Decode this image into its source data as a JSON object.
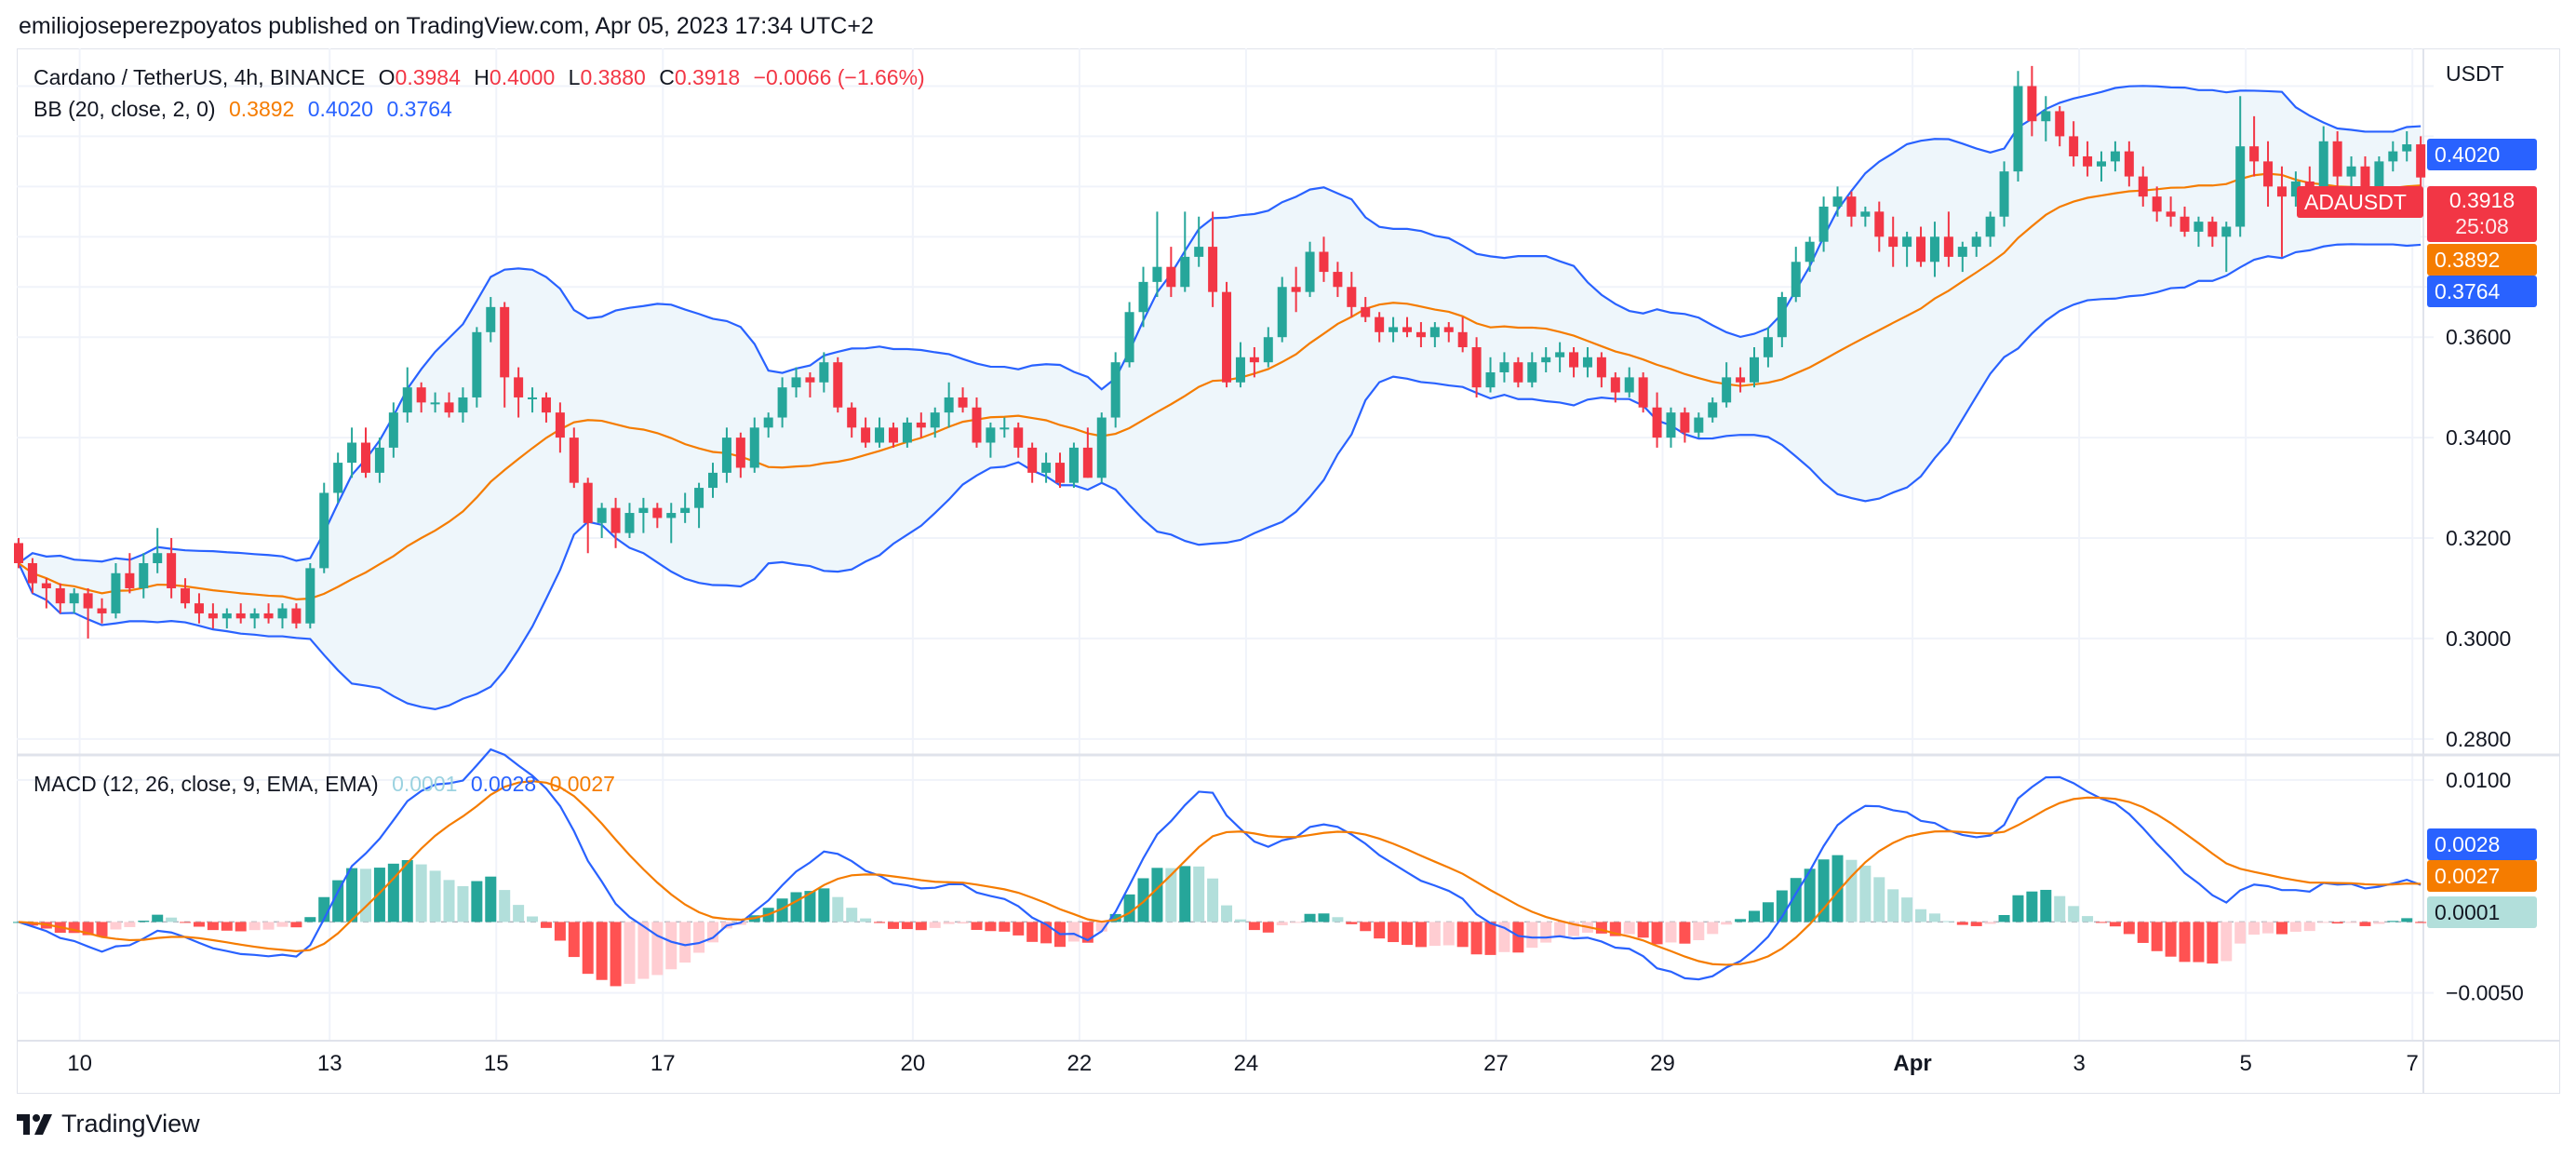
{
  "publisher": "emiliojoseperezpoyatos published on TradingView.com, Apr 05, 2023 17:34 UTC+2",
  "footer": {
    "brand": "TradingView"
  },
  "colors": {
    "up": "#26a69a",
    "down": "#f23645",
    "bb_line": "#2962ff",
    "bb_basis": "#f57c00",
    "bb_fill": "#eef6fb",
    "macd": "#2962ff",
    "signal": "#f57c00",
    "hist_up_strong": "#26a69a",
    "hist_up_weak": "#b2dfdb",
    "hist_down_strong": "#ff5252",
    "hist_down_weak": "#ffcdd2",
    "grid": "#f0f3fa"
  },
  "legend": {
    "symbol": "Cardano / TetherUS, 4h, BINANCE",
    "o_label": "O",
    "o_value": "0.3984",
    "h_label": "H",
    "h_value": "0.4000",
    "l_label": "L",
    "l_value": "0.3880",
    "c_label": "C",
    "c_value": "0.3918",
    "change": "−0.0066 (−1.66%)",
    "bb_label": "BB (20, close, 2, 0)",
    "bb_basis": "0.3892",
    "bb_upper": "0.4020",
    "bb_lower": "0.3764",
    "macd_label": "MACD (12, 26, close, 9, EMA, EMA)",
    "macd_hist": "0.0001",
    "macd_line": "0.0028",
    "macd_signal": "0.0027"
  },
  "price_axis": {
    "currency": "USDT",
    "ticks": [
      "0.3600",
      "0.3400",
      "0.3200",
      "0.3000",
      "0.2800"
    ],
    "tags": {
      "symbol": "ADAUSDT",
      "close": "0.3918",
      "countdown": "25:08",
      "upper": "0.4020",
      "basis": "0.3892",
      "lower": "0.3764"
    }
  },
  "macd_axis": {
    "ticks": [
      "0.0100",
      "−0.0050"
    ],
    "tags": {
      "macd": "0.0028",
      "signal": "0.0027",
      "hist": "0.0001"
    }
  },
  "time_axis": {
    "labels": [
      "10",
      "13",
      "15",
      "17",
      "20",
      "22",
      "24",
      "27",
      "29",
      "Apr",
      "3",
      "5",
      "7"
    ]
  },
  "chart_data": {
    "type": "candlestick",
    "symbol": "ADAUSDT",
    "timeframe": "4h",
    "ylim": [
      0.277,
      0.4175
    ],
    "price_ticks": [
      0.28,
      0.3,
      0.32,
      0.34,
      0.36
    ],
    "macd_ylim": [
      -0.0083,
      0.0117
    ],
    "macd_ticks": [
      0.01,
      -0.005
    ],
    "date_ticks": [
      {
        "label": "10",
        "bar": 4.4
      },
      {
        "label": "13",
        "bar": 22.4
      },
      {
        "label": "15",
        "bar": 34.4
      },
      {
        "label": "17",
        "bar": 46.4
      },
      {
        "label": "20",
        "bar": 64.4
      },
      {
        "label": "22",
        "bar": 76.4
      },
      {
        "label": "24",
        "bar": 88.4
      },
      {
        "label": "27",
        "bar": 106.4
      },
      {
        "label": "29",
        "bar": 118.4
      },
      {
        "label": "Apr",
        "bar": 136.4
      },
      {
        "label": "3",
        "bar": 148.4
      },
      {
        "label": "5",
        "bar": 160.4
      },
      {
        "label": "7",
        "bar": 172.4
      }
    ],
    "ohlc": [
      [
        0.319,
        0.32,
        0.314,
        0.315
      ],
      [
        0.315,
        0.316,
        0.309,
        0.311
      ],
      [
        0.311,
        0.312,
        0.306,
        0.31
      ],
      [
        0.31,
        0.311,
        0.305,
        0.307
      ],
      [
        0.307,
        0.31,
        0.305,
        0.309
      ],
      [
        0.309,
        0.31,
        0.3,
        0.306
      ],
      [
        0.306,
        0.308,
        0.303,
        0.305
      ],
      [
        0.305,
        0.315,
        0.304,
        0.313
      ],
      [
        0.313,
        0.317,
        0.309,
        0.31
      ],
      [
        0.31,
        0.317,
        0.308,
        0.315
      ],
      [
        0.315,
        0.322,
        0.313,
        0.317
      ],
      [
        0.317,
        0.32,
        0.308,
        0.31
      ],
      [
        0.31,
        0.312,
        0.306,
        0.307
      ],
      [
        0.307,
        0.309,
        0.303,
        0.305
      ],
      [
        0.305,
        0.307,
        0.302,
        0.304
      ],
      [
        0.304,
        0.306,
        0.302,
        0.305
      ],
      [
        0.305,
        0.307,
        0.303,
        0.304
      ],
      [
        0.304,
        0.306,
        0.302,
        0.305
      ],
      [
        0.305,
        0.307,
        0.303,
        0.304
      ],
      [
        0.304,
        0.307,
        0.302,
        0.306
      ],
      [
        0.306,
        0.307,
        0.302,
        0.303
      ],
      [
        0.303,
        0.315,
        0.302,
        0.314
      ],
      [
        0.314,
        0.331,
        0.313,
        0.329
      ],
      [
        0.329,
        0.337,
        0.327,
        0.335
      ],
      [
        0.335,
        0.342,
        0.332,
        0.339
      ],
      [
        0.339,
        0.342,
        0.332,
        0.333
      ],
      [
        0.333,
        0.34,
        0.331,
        0.338
      ],
      [
        0.338,
        0.347,
        0.336,
        0.345
      ],
      [
        0.345,
        0.354,
        0.343,
        0.35
      ],
      [
        0.35,
        0.351,
        0.345,
        0.347
      ],
      [
        0.347,
        0.349,
        0.345,
        0.347
      ],
      [
        0.347,
        0.349,
        0.344,
        0.345
      ],
      [
        0.345,
        0.35,
        0.343,
        0.348
      ],
      [
        0.348,
        0.362,
        0.346,
        0.361
      ],
      [
        0.361,
        0.368,
        0.359,
        0.366
      ],
      [
        0.366,
        0.367,
        0.346,
        0.352
      ],
      [
        0.352,
        0.354,
        0.344,
        0.348
      ],
      [
        0.348,
        0.35,
        0.345,
        0.348
      ],
      [
        0.348,
        0.349,
        0.343,
        0.345
      ],
      [
        0.345,
        0.347,
        0.337,
        0.34
      ],
      [
        0.34,
        0.342,
        0.33,
        0.331
      ],
      [
        0.331,
        0.332,
        0.317,
        0.323
      ],
      [
        0.323,
        0.327,
        0.32,
        0.326
      ],
      [
        0.326,
        0.328,
        0.318,
        0.321
      ],
      [
        0.321,
        0.327,
        0.32,
        0.325
      ],
      [
        0.325,
        0.328,
        0.321,
        0.326
      ],
      [
        0.326,
        0.327,
        0.322,
        0.324
      ],
      [
        0.324,
        0.327,
        0.319,
        0.325
      ],
      [
        0.325,
        0.329,
        0.323,
        0.326
      ],
      [
        0.326,
        0.331,
        0.322,
        0.33
      ],
      [
        0.33,
        0.335,
        0.328,
        0.333
      ],
      [
        0.333,
        0.342,
        0.331,
        0.34
      ],
      [
        0.34,
        0.341,
        0.332,
        0.334
      ],
      [
        0.334,
        0.344,
        0.333,
        0.342
      ],
      [
        0.342,
        0.345,
        0.34,
        0.344
      ],
      [
        0.344,
        0.352,
        0.342,
        0.35
      ],
      [
        0.35,
        0.354,
        0.348,
        0.352
      ],
      [
        0.352,
        0.353,
        0.348,
        0.351
      ],
      [
        0.351,
        0.357,
        0.349,
        0.355
      ],
      [
        0.355,
        0.356,
        0.345,
        0.346
      ],
      [
        0.346,
        0.347,
        0.34,
        0.342
      ],
      [
        0.342,
        0.344,
        0.338,
        0.339
      ],
      [
        0.339,
        0.344,
        0.338,
        0.342
      ],
      [
        0.342,
        0.343,
        0.338,
        0.339
      ],
      [
        0.339,
        0.344,
        0.338,
        0.343
      ],
      [
        0.343,
        0.345,
        0.34,
        0.342
      ],
      [
        0.342,
        0.346,
        0.34,
        0.345
      ],
      [
        0.345,
        0.351,
        0.342,
        0.348
      ],
      [
        0.348,
        0.35,
        0.345,
        0.346
      ],
      [
        0.346,
        0.348,
        0.338,
        0.339
      ],
      [
        0.339,
        0.343,
        0.336,
        0.342
      ],
      [
        0.342,
        0.344,
        0.34,
        0.342
      ],
      [
        0.342,
        0.343,
        0.336,
        0.338
      ],
      [
        0.338,
        0.339,
        0.331,
        0.333
      ],
      [
        0.333,
        0.337,
        0.331,
        0.335
      ],
      [
        0.335,
        0.337,
        0.33,
        0.331
      ],
      [
        0.331,
        0.339,
        0.33,
        0.338
      ],
      [
        0.338,
        0.342,
        0.332,
        0.332
      ],
      [
        0.332,
        0.345,
        0.331,
        0.344
      ],
      [
        0.344,
        0.357,
        0.342,
        0.355
      ],
      [
        0.355,
        0.367,
        0.354,
        0.365
      ],
      [
        0.365,
        0.374,
        0.362,
        0.371
      ],
      [
        0.371,
        0.385,
        0.368,
        0.374
      ],
      [
        0.374,
        0.378,
        0.368,
        0.37
      ],
      [
        0.37,
        0.385,
        0.369,
        0.376
      ],
      [
        0.376,
        0.384,
        0.374,
        0.378
      ],
      [
        0.378,
        0.385,
        0.366,
        0.369
      ],
      [
        0.369,
        0.371,
        0.35,
        0.351
      ],
      [
        0.351,
        0.359,
        0.35,
        0.356
      ],
      [
        0.356,
        0.358,
        0.352,
        0.355
      ],
      [
        0.355,
        0.362,
        0.354,
        0.36
      ],
      [
        0.36,
        0.372,
        0.359,
        0.37
      ],
      [
        0.37,
        0.374,
        0.365,
        0.369
      ],
      [
        0.369,
        0.379,
        0.368,
        0.377
      ],
      [
        0.377,
        0.38,
        0.371,
        0.373
      ],
      [
        0.373,
        0.375,
        0.368,
        0.37
      ],
      [
        0.37,
        0.373,
        0.364,
        0.366
      ],
      [
        0.366,
        0.368,
        0.363,
        0.364
      ],
      [
        0.364,
        0.365,
        0.359,
        0.361
      ],
      [
        0.361,
        0.364,
        0.359,
        0.362
      ],
      [
        0.362,
        0.364,
        0.36,
        0.361
      ],
      [
        0.361,
        0.363,
        0.358,
        0.36
      ],
      [
        0.36,
        0.363,
        0.358,
        0.362
      ],
      [
        0.362,
        0.363,
        0.359,
        0.361
      ],
      [
        0.361,
        0.364,
        0.357,
        0.358
      ],
      [
        0.358,
        0.36,
        0.348,
        0.35
      ],
      [
        0.35,
        0.356,
        0.349,
        0.353
      ],
      [
        0.353,
        0.357,
        0.351,
        0.355
      ],
      [
        0.355,
        0.356,
        0.35,
        0.351
      ],
      [
        0.351,
        0.357,
        0.35,
        0.355
      ],
      [
        0.355,
        0.358,
        0.353,
        0.356
      ],
      [
        0.356,
        0.359,
        0.353,
        0.357
      ],
      [
        0.357,
        0.358,
        0.352,
        0.354
      ],
      [
        0.354,
        0.358,
        0.352,
        0.356
      ],
      [
        0.356,
        0.357,
        0.35,
        0.352
      ],
      [
        0.352,
        0.353,
        0.347,
        0.349
      ],
      [
        0.349,
        0.354,
        0.348,
        0.352
      ],
      [
        0.352,
        0.353,
        0.345,
        0.346
      ],
      [
        0.346,
        0.349,
        0.338,
        0.34
      ],
      [
        0.34,
        0.346,
        0.338,
        0.345
      ],
      [
        0.345,
        0.346,
        0.339,
        0.341
      ],
      [
        0.341,
        0.345,
        0.34,
        0.344
      ],
      [
        0.344,
        0.348,
        0.343,
        0.347
      ],
      [
        0.347,
        0.355,
        0.346,
        0.352
      ],
      [
        0.352,
        0.354,
        0.349,
        0.351
      ],
      [
        0.351,
        0.358,
        0.35,
        0.356
      ],
      [
        0.356,
        0.362,
        0.354,
        0.36
      ],
      [
        0.36,
        0.369,
        0.358,
        0.368
      ],
      [
        0.368,
        0.378,
        0.367,
        0.375
      ],
      [
        0.375,
        0.38,
        0.373,
        0.379
      ],
      [
        0.379,
        0.388,
        0.377,
        0.386
      ],
      [
        0.386,
        0.39,
        0.384,
        0.388
      ],
      [
        0.388,
        0.389,
        0.382,
        0.384
      ],
      [
        0.384,
        0.386,
        0.382,
        0.385
      ],
      [
        0.385,
        0.387,
        0.377,
        0.38
      ],
      [
        0.38,
        0.384,
        0.374,
        0.378
      ],
      [
        0.378,
        0.381,
        0.374,
        0.38
      ],
      [
        0.38,
        0.382,
        0.374,
        0.375
      ],
      [
        0.375,
        0.383,
        0.372,
        0.38
      ],
      [
        0.38,
        0.385,
        0.374,
        0.376
      ],
      [
        0.376,
        0.379,
        0.373,
        0.378
      ],
      [
        0.378,
        0.381,
        0.376,
        0.38
      ],
      [
        0.38,
        0.385,
        0.378,
        0.384
      ],
      [
        0.384,
        0.395,
        0.382,
        0.393
      ],
      [
        0.393,
        0.413,
        0.391,
        0.41
      ],
      [
        0.41,
        0.414,
        0.4,
        0.403
      ],
      [
        0.403,
        0.408,
        0.399,
        0.405
      ],
      [
        0.405,
        0.406,
        0.398,
        0.4
      ],
      [
        0.4,
        0.403,
        0.394,
        0.396
      ],
      [
        0.396,
        0.399,
        0.392,
        0.394
      ],
      [
        0.394,
        0.397,
        0.391,
        0.395
      ],
      [
        0.395,
        0.399,
        0.393,
        0.397
      ],
      [
        0.397,
        0.399,
        0.39,
        0.392
      ],
      [
        0.392,
        0.394,
        0.386,
        0.388
      ],
      [
        0.388,
        0.39,
        0.383,
        0.385
      ],
      [
        0.385,
        0.388,
        0.382,
        0.384
      ],
      [
        0.384,
        0.386,
        0.38,
        0.381
      ],
      [
        0.381,
        0.384,
        0.378,
        0.383
      ],
      [
        0.383,
        0.384,
        0.378,
        0.38
      ],
      [
        0.38,
        0.383,
        0.373,
        0.382
      ],
      [
        0.382,
        0.408,
        0.38,
        0.398
      ],
      [
        0.398,
        0.404,
        0.392,
        0.395
      ],
      [
        0.395,
        0.399,
        0.386,
        0.39
      ],
      [
        0.39,
        0.394,
        0.376,
        0.388
      ],
      [
        0.388,
        0.393,
        0.386,
        0.391
      ],
      [
        0.391,
        0.394,
        0.388,
        0.39
      ],
      [
        0.39,
        0.402,
        0.389,
        0.399
      ],
      [
        0.399,
        0.401,
        0.39,
        0.392
      ],
      [
        0.392,
        0.396,
        0.389,
        0.394
      ],
      [
        0.394,
        0.396,
        0.388,
        0.39
      ],
      [
        0.39,
        0.396,
        0.389,
        0.395
      ],
      [
        0.395,
        0.399,
        0.393,
        0.397
      ],
      [
        0.397,
        0.401,
        0.395,
        0.3984
      ],
      [
        0.3984,
        0.4,
        0.388,
        0.3918
      ]
    ]
  }
}
